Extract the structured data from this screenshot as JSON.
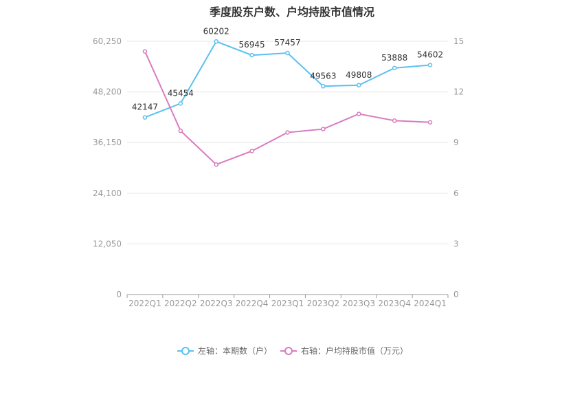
{
  "chart_data": {
    "type": "line",
    "title": "季度股东户数、户均持股市值情况",
    "categories": [
      "2022Q1",
      "2022Q2",
      "2022Q3",
      "2022Q4",
      "2023Q1",
      "2023Q2",
      "2023Q3",
      "2023Q4",
      "2024Q1"
    ],
    "left_axis": {
      "ticks": [
        "0",
        "12,050",
        "24,100",
        "36,150",
        "48,200",
        "60,250"
      ],
      "ylim": [
        0,
        60250
      ]
    },
    "right_axis": {
      "ticks": [
        "0",
        "3",
        "6",
        "9",
        "12",
        "15"
      ],
      "ylim": [
        0,
        15
      ]
    },
    "series": [
      {
        "name": "左轴：本期数（户）",
        "axis": "left",
        "color": "#5bc0f0",
        "values": [
          42147,
          45454,
          60202,
          56945,
          57457,
          49563,
          49808,
          53888,
          54602
        ],
        "labels": [
          "42147",
          "45454",
          "60202",
          "56945",
          "57457",
          "49563",
          "49808",
          "53888",
          "54602"
        ]
      },
      {
        "name": "右轴：户均持股市值（万元）",
        "axis": "right",
        "color": "#d97bbf",
        "values": [
          14.4,
          9.7,
          7.7,
          8.5,
          9.6,
          9.8,
          10.7,
          10.3,
          10.2
        ]
      }
    ],
    "grid": true,
    "legend_position": "bottom"
  }
}
